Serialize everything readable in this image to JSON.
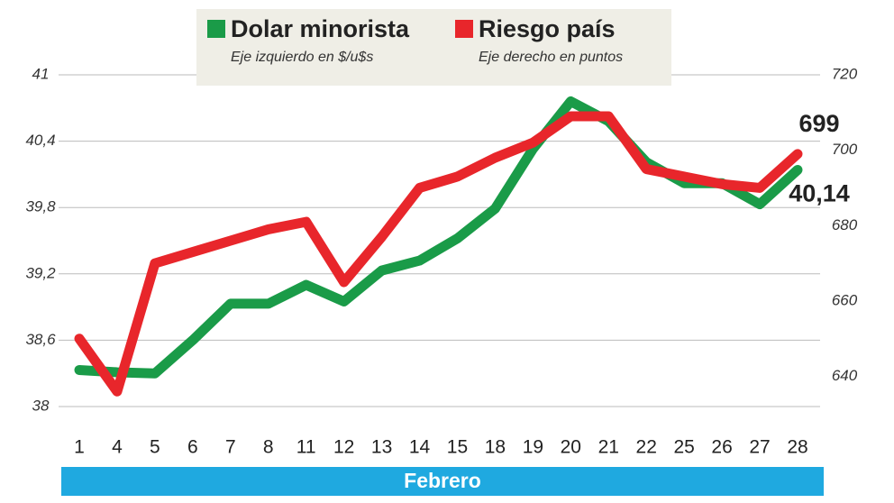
{
  "chart_data": {
    "type": "line",
    "x_label": "Febrero",
    "y_label": "Eje izquierdo en $/u$s",
    "y2_label": "Eje derecho en puntos",
    "categories": [
      "1",
      "4",
      "5",
      "6",
      "7",
      "8",
      "11",
      "12",
      "13",
      "14",
      "15",
      "18",
      "19",
      "20",
      "21",
      "22",
      "25",
      "26",
      "27",
      "28"
    ],
    "series": [
      {
        "name": "Dolar minorista",
        "color": "#1a9b48",
        "axis": "y",
        "values": [
          38.33,
          38.31,
          38.3,
          38.6,
          38.93,
          38.93,
          39.1,
          38.95,
          39.23,
          39.32,
          39.52,
          39.79,
          40.33,
          40.76,
          40.58,
          40.21,
          40.02,
          40.02,
          39.83,
          40.14
        ],
        "value_labels": [
          null,
          null,
          null,
          null,
          null,
          null,
          null,
          null,
          null,
          null,
          null,
          null,
          null,
          null,
          null,
          null,
          null,
          null,
          null,
          "40,14"
        ]
      },
      {
        "name": "Riesgo país",
        "color": "#e8262b",
        "axis": "y2",
        "values": [
          650,
          636,
          670,
          673,
          676,
          679,
          681,
          665,
          677,
          690,
          693,
          698,
          702,
          709,
          709,
          695,
          693,
          691,
          690,
          699
        ]
      }
    ],
    "ylim": [
      38,
      41
    ],
    "yticks": [
      38,
      {
        "value": 38.6,
        "label": "38,6"
      },
      {
        "value": 39.2,
        "label": "39,2"
      },
      {
        "value": 39.8,
        "label": "39,8"
      },
      {
        "value": 40.4,
        "label": "40,4"
      },
      41
    ],
    "y2lim": [
      632,
      720
    ],
    "y2ticks": [
      640,
      660,
      680,
      700,
      720
    ],
    "grid": true
  }
}
